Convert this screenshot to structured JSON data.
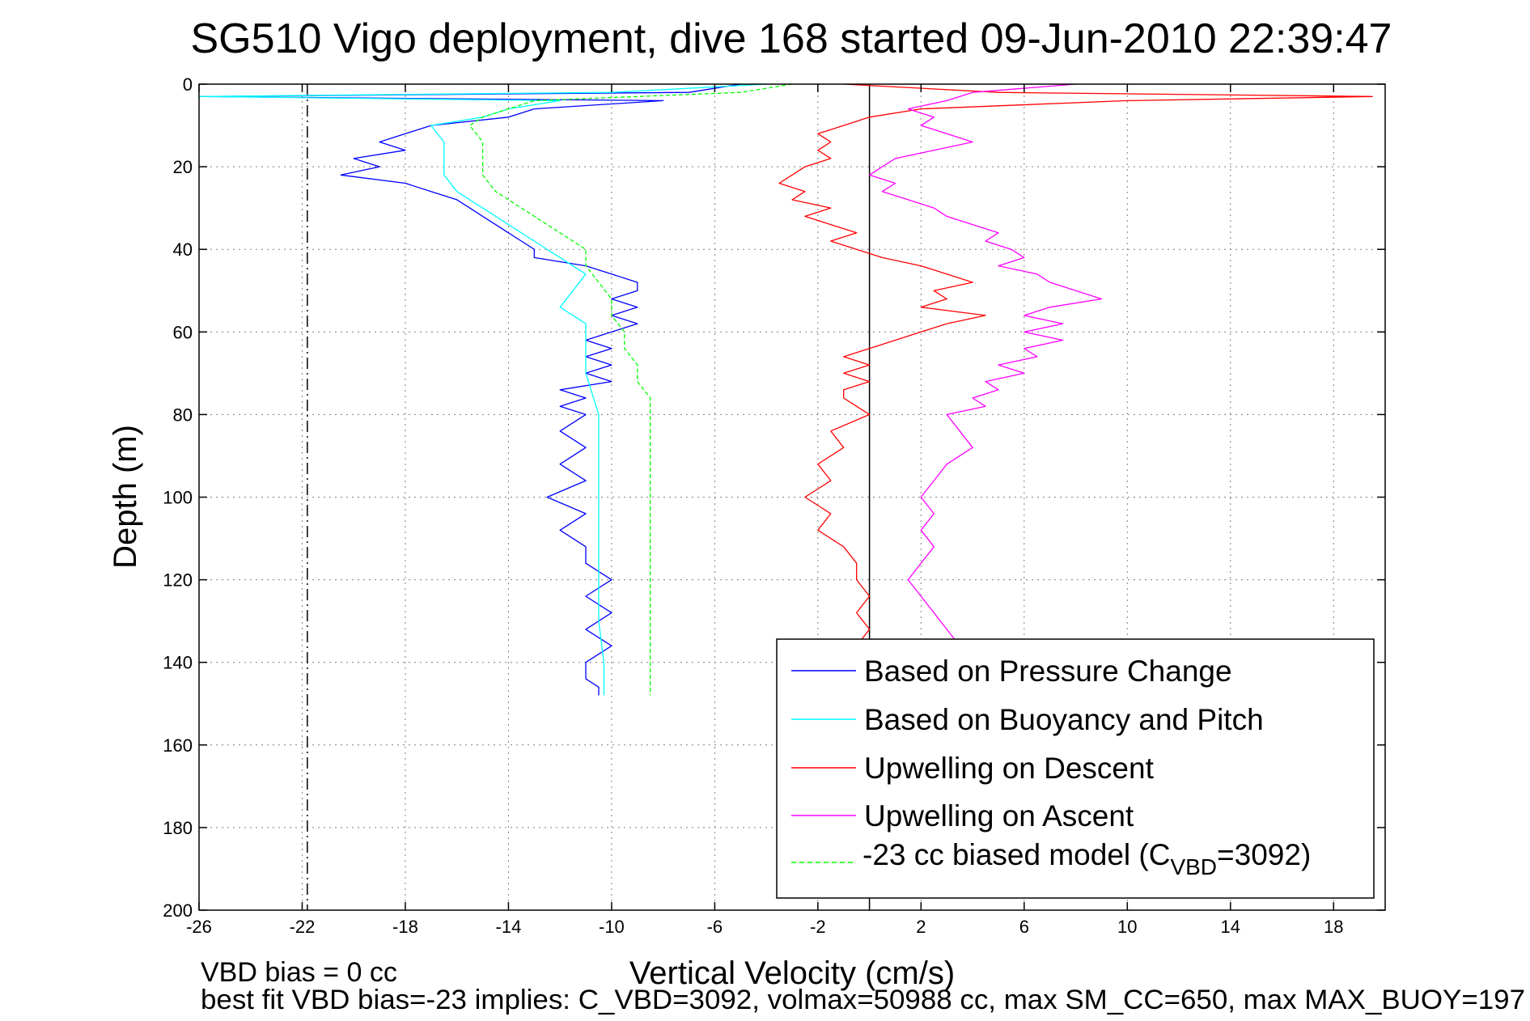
{
  "window": {
    "background": "#ffffff"
  },
  "chart_data": {
    "type": "line",
    "title": "SG510 Vigo deployment, dive 168 started 09-Jun-2010 22:39:47",
    "xlabel": "Vertical Velocity (cm/s)",
    "ylabel": "Depth (m)",
    "xlim": [
      -26,
      20
    ],
    "ylim": [
      0,
      200
    ],
    "y_reversed": true,
    "grid": true,
    "x_ticks": [
      -26,
      -22,
      -18,
      -14,
      -10,
      -6,
      -2,
      2,
      6,
      10,
      14,
      18
    ],
    "y_ticks": [
      0,
      20,
      40,
      60,
      80,
      100,
      120,
      140,
      160,
      180,
      200
    ],
    "legend_position": "bottom-right",
    "reference_lines": [
      {
        "x": 0,
        "style": "solid",
        "color": "#000000"
      },
      {
        "x": -21.8,
        "style": "dash-dot",
        "color": "#000000"
      }
    ],
    "series": [
      {
        "name": "Based on Pressure Change",
        "color": "#0000ff",
        "style": "solid",
        "depth": [
          0,
          2,
          3,
          4,
          6,
          8,
          10,
          12,
          14,
          16,
          18,
          20,
          22,
          24,
          26,
          28,
          30,
          32,
          34,
          36,
          38,
          40,
          42,
          44,
          46,
          48,
          50,
          52,
          54,
          56,
          58,
          60,
          62,
          64,
          66,
          68,
          70,
          72,
          74,
          76,
          78,
          80,
          84,
          88,
          92,
          96,
          100,
          104,
          108,
          112,
          116,
          120,
          124,
          128,
          132,
          136,
          140,
          144,
          146,
          148
        ],
        "velocity": [
          -5,
          -7,
          -26,
          -8,
          -13,
          -14,
          -17,
          -18,
          -19,
          -18,
          -20,
          -19,
          -20.5,
          -18,
          -17,
          -16,
          -15.5,
          -15,
          -14.5,
          -14,
          -13.5,
          -13,
          -13,
          -11,
          -10,
          -9,
          -9,
          -10,
          -9,
          -10,
          -9,
          -10,
          -11,
          -10,
          -11,
          -10,
          -11,
          -10,
          -12,
          -11,
          -12,
          -11,
          -12,
          -11,
          -12,
          -11,
          -12.5,
          -11,
          -12,
          -11,
          -11,
          -10,
          -11,
          -10,
          -11,
          -10,
          -11,
          -11,
          -10.5,
          -10.5
        ]
      },
      {
        "name": "Based on Buoyancy and Pitch",
        "color": "#00ffff",
        "style": "solid",
        "depth": [
          0,
          2,
          3,
          4,
          6,
          8,
          10,
          14,
          18,
          22,
          26,
          30,
          34,
          38,
          42,
          46,
          50,
          54,
          58,
          62,
          66,
          70,
          80,
          90,
          100,
          110,
          120,
          130,
          140,
          148
        ],
        "velocity": [
          -4,
          -10,
          -26,
          -12,
          -14,
          -15,
          -17,
          -16.5,
          -16.5,
          -16.5,
          -16,
          -15,
          -14,
          -13,
          -12,
          -11,
          -11.5,
          -12,
          -11,
          -11,
          -11,
          -11,
          -10.5,
          -10.5,
          -10.5,
          -10.5,
          -10.5,
          -10.5,
          -10.3,
          -10.3
        ]
      },
      {
        "name": "Upwelling on Descent",
        "color": "#ff0000",
        "style": "solid",
        "depth": [
          0,
          2,
          3,
          4,
          6,
          8,
          10,
          12,
          14,
          16,
          18,
          20,
          22,
          24,
          26,
          28,
          30,
          32,
          34,
          36,
          38,
          40,
          42,
          44,
          46,
          48,
          50,
          52,
          54,
          56,
          58,
          60,
          62,
          64,
          66,
          68,
          70,
          72,
          74,
          76,
          78,
          80,
          84,
          88,
          92,
          96,
          100,
          104,
          108,
          112,
          116,
          120,
          124,
          128,
          132,
          136
        ],
        "velocity": [
          -1,
          5,
          19.5,
          10,
          2,
          0,
          -1,
          -2,
          -1.5,
          -2,
          -1.5,
          -2.5,
          -3,
          -3.5,
          -2.5,
          -3,
          -1.5,
          -2.5,
          -1.5,
          -0.5,
          -1.5,
          -0.5,
          0.5,
          2,
          3,
          4,
          2.5,
          3,
          2,
          4.5,
          3,
          2,
          1,
          0,
          -1,
          0,
          -1,
          0,
          -1,
          -1,
          -0.5,
          0,
          -1.5,
          -1,
          -2,
          -1.5,
          -2.5,
          -1.5,
          -2,
          -1,
          -0.5,
          -0.5,
          0,
          -0.5,
          0,
          -0.5
        ]
      },
      {
        "name": "Upwelling on Ascent",
        "color": "#ff00ff",
        "style": "solid",
        "depth": [
          0,
          2,
          4,
          6,
          8,
          10,
          12,
          14,
          16,
          18,
          20,
          22,
          24,
          26,
          28,
          30,
          32,
          34,
          36,
          38,
          40,
          42,
          44,
          46,
          48,
          50,
          52,
          54,
          56,
          58,
          60,
          62,
          64,
          66,
          68,
          70,
          72,
          74,
          76,
          78,
          80,
          84,
          88,
          92,
          96,
          100,
          104,
          108,
          112,
          116,
          120,
          124,
          128,
          132,
          136
        ],
        "velocity": [
          8,
          4,
          3,
          1.5,
          2.5,
          2,
          3,
          4,
          2.5,
          1,
          0.5,
          0,
          1,
          0.5,
          1.5,
          2.5,
          3,
          4,
          5,
          4.5,
          5.5,
          6,
          5,
          6.5,
          7,
          8,
          9,
          7,
          6,
          7.5,
          6,
          7.5,
          6,
          6.5,
          5,
          6,
          4.5,
          5,
          4,
          4.5,
          3,
          3.5,
          4,
          3,
          2.5,
          2,
          2.5,
          2,
          2.5,
          2,
          1.5,
          2,
          2.5,
          3,
          3.5
        ]
      },
      {
        "name": "-23 cc biased model (CVBD=3092)",
        "color": "#00ff00",
        "style": "dashed",
        "depth": [
          0,
          2,
          3,
          4,
          6,
          8,
          10,
          14,
          18,
          22,
          26,
          30,
          34,
          38,
          40,
          44,
          48,
          52,
          56,
          60,
          64,
          68,
          72,
          76,
          80,
          90,
          100,
          110,
          120,
          130,
          140,
          148
        ],
        "velocity": [
          -3,
          -5,
          -9,
          -13,
          -14,
          -15,
          -15.5,
          -15,
          -15,
          -15,
          -14.5,
          -13.5,
          -12.5,
          -11.5,
          -11,
          -11,
          -10.5,
          -10,
          -10,
          -9.5,
          -9.5,
          -9,
          -9,
          -8.5,
          -8.5,
          -8.5,
          -8.5,
          -8.5,
          -8.5,
          -8.5,
          -8.5,
          -8.5
        ]
      }
    ]
  },
  "legend": {
    "entries": [
      "Based on Pressure Change",
      "Based on Buoyancy and Pitch",
      "Upwelling on Descent",
      "Upwelling on Ascent"
    ],
    "model_prefix": "-23 cc biased model (C",
    "model_subscript": "VBD",
    "model_suffix": "=3092)"
  },
  "footnotes": {
    "line1": "VBD bias = 0 cc",
    "line2": "best fit VBD bias=-23 implies: C_VBD=3092, volmax=50988 cc, max SM_CC=650, max MAX_BUOY=197"
  }
}
